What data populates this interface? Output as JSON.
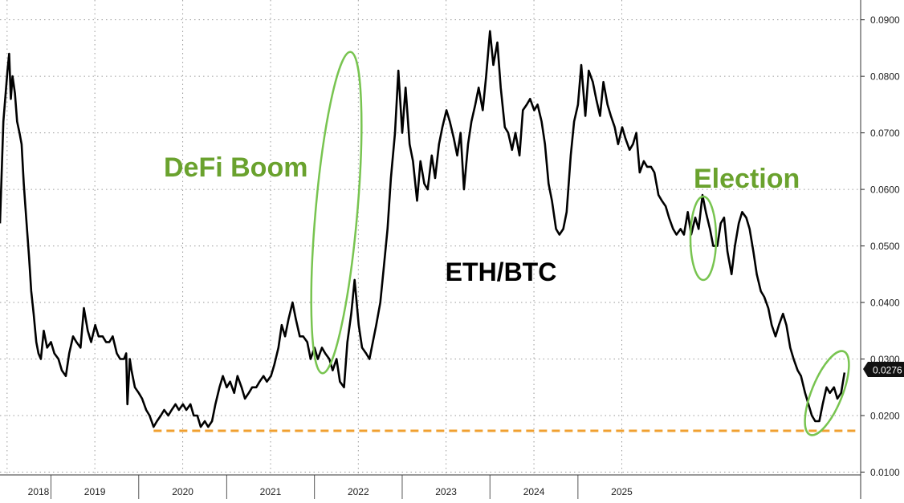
{
  "chart_data": {
    "type": "line",
    "title": "ETH/BTC",
    "series": [
      {
        "color": "#000000",
        "points": [
          [
            "2017-12-01",
            0.054
          ],
          [
            "2017-12-15",
            0.072
          ],
          [
            "2018-01-01",
            0.081
          ],
          [
            "2018-01-08",
            0.084
          ],
          [
            "2018-01-15",
            0.076
          ],
          [
            "2018-01-22",
            0.08
          ],
          [
            "2018-02-01",
            0.077
          ],
          [
            "2018-02-10",
            0.072
          ],
          [
            "2018-02-20",
            0.07
          ],
          [
            "2018-03-01",
            0.068
          ],
          [
            "2018-03-10",
            0.061
          ],
          [
            "2018-03-20",
            0.055
          ],
          [
            "2018-04-01",
            0.048
          ],
          [
            "2018-04-10",
            0.042
          ],
          [
            "2018-04-20",
            0.038
          ],
          [
            "2018-05-01",
            0.033
          ],
          [
            "2018-05-10",
            0.031
          ],
          [
            "2018-05-20",
            0.03
          ],
          [
            "2018-06-01",
            0.035
          ],
          [
            "2018-06-15",
            0.032
          ],
          [
            "2018-07-01",
            0.033
          ],
          [
            "2018-07-15",
            0.031
          ],
          [
            "2018-08-01",
            0.03
          ],
          [
            "2018-08-15",
            0.028
          ],
          [
            "2018-09-01",
            0.027
          ],
          [
            "2018-09-15",
            0.031
          ],
          [
            "2018-10-01",
            0.034
          ],
          [
            "2018-10-15",
            0.033
          ],
          [
            "2018-11-01",
            0.032
          ],
          [
            "2018-11-15",
            0.039
          ],
          [
            "2018-12-01",
            0.035
          ],
          [
            "2018-12-15",
            0.033
          ],
          [
            "2019-01-01",
            0.036
          ],
          [
            "2019-01-15",
            0.034
          ],
          [
            "2019-02-01",
            0.034
          ],
          [
            "2019-02-15",
            0.033
          ],
          [
            "2019-03-01",
            0.033
          ],
          [
            "2019-03-15",
            0.034
          ],
          [
            "2019-04-01",
            0.031
          ],
          [
            "2019-04-15",
            0.03
          ],
          [
            "2019-05-01",
            0.03
          ],
          [
            "2019-05-10",
            0.031
          ],
          [
            "2019-05-15",
            0.022
          ],
          [
            "2019-05-25",
            0.03
          ],
          [
            "2019-06-01",
            0.028
          ],
          [
            "2019-06-15",
            0.025
          ],
          [
            "2019-07-01",
            0.024
          ],
          [
            "2019-07-15",
            0.023
          ],
          [
            "2019-08-01",
            0.021
          ],
          [
            "2019-08-15",
            0.02
          ],
          [
            "2019-09-01",
            0.018
          ],
          [
            "2019-09-15",
            0.019
          ],
          [
            "2019-10-01",
            0.02
          ],
          [
            "2019-10-15",
            0.021
          ],
          [
            "2019-11-01",
            0.02
          ],
          [
            "2019-11-15",
            0.021
          ],
          [
            "2019-12-01",
            0.022
          ],
          [
            "2019-12-15",
            0.021
          ],
          [
            "2020-01-01",
            0.022
          ],
          [
            "2020-01-15",
            0.021
          ],
          [
            "2020-02-01",
            0.022
          ],
          [
            "2020-02-15",
            0.02
          ],
          [
            "2020-03-01",
            0.02
          ],
          [
            "2020-03-15",
            0.018
          ],
          [
            "2020-04-01",
            0.019
          ],
          [
            "2020-04-15",
            0.018
          ],
          [
            "2020-05-01",
            0.019
          ],
          [
            "2020-05-15",
            0.022
          ],
          [
            "2020-06-01",
            0.025
          ],
          [
            "2020-06-15",
            0.027
          ],
          [
            "2020-07-01",
            0.025
          ],
          [
            "2020-07-15",
            0.026
          ],
          [
            "2020-08-01",
            0.024
          ],
          [
            "2020-08-15",
            0.027
          ],
          [
            "2020-09-01",
            0.025
          ],
          [
            "2020-09-15",
            0.023
          ],
          [
            "2020-10-01",
            0.024
          ],
          [
            "2020-10-15",
            0.025
          ],
          [
            "2020-11-01",
            0.025
          ],
          [
            "2020-11-15",
            0.026
          ],
          [
            "2020-12-01",
            0.027
          ],
          [
            "2020-12-15",
            0.026
          ],
          [
            "2021-01-01",
            0.027
          ],
          [
            "2021-01-15",
            0.029
          ],
          [
            "2021-02-01",
            0.032
          ],
          [
            "2021-02-15",
            0.036
          ],
          [
            "2021-03-01",
            0.034
          ],
          [
            "2021-03-15",
            0.037
          ],
          [
            "2021-04-01",
            0.04
          ],
          [
            "2021-04-15",
            0.037
          ],
          [
            "2021-05-01",
            0.034
          ],
          [
            "2021-05-15",
            0.034
          ],
          [
            "2021-06-01",
            0.033
          ],
          [
            "2021-06-15",
            0.03
          ],
          [
            "2021-07-01",
            0.032
          ],
          [
            "2021-07-15",
            0.03
          ],
          [
            "2021-08-01",
            0.032
          ],
          [
            "2021-08-15",
            0.031
          ],
          [
            "2021-09-01",
            0.03
          ],
          [
            "2021-09-15",
            0.028
          ],
          [
            "2021-10-01",
            0.03
          ],
          [
            "2021-10-15",
            0.026
          ],
          [
            "2021-11-01",
            0.025
          ],
          [
            "2021-11-15",
            0.033
          ],
          [
            "2021-12-01",
            0.038
          ],
          [
            "2021-12-15",
            0.044
          ],
          [
            "2022-01-01",
            0.036
          ],
          [
            "2022-01-15",
            0.032
          ],
          [
            "2022-02-01",
            0.031
          ],
          [
            "2022-02-15",
            0.03
          ],
          [
            "2022-03-01",
            0.033
          ],
          [
            "2022-03-15",
            0.036
          ],
          [
            "2022-04-01",
            0.04
          ],
          [
            "2022-04-15",
            0.046
          ],
          [
            "2022-05-01",
            0.053
          ],
          [
            "2022-05-15",
            0.062
          ],
          [
            "2022-06-01",
            0.07
          ],
          [
            "2022-06-15",
            0.081
          ],
          [
            "2022-07-01",
            0.07
          ],
          [
            "2022-07-15",
            0.078
          ],
          [
            "2022-08-01",
            0.068
          ],
          [
            "2022-08-15",
            0.065
          ],
          [
            "2022-09-01",
            0.058
          ],
          [
            "2022-09-15",
            0.065
          ],
          [
            "2022-10-01",
            0.061
          ],
          [
            "2022-10-15",
            0.06
          ],
          [
            "2022-11-01",
            0.066
          ],
          [
            "2022-11-15",
            0.062
          ],
          [
            "2022-12-01",
            0.068
          ],
          [
            "2022-12-15",
            0.071
          ],
          [
            "2023-01-01",
            0.074
          ],
          [
            "2023-01-15",
            0.072
          ],
          [
            "2023-02-01",
            0.069
          ],
          [
            "2023-02-15",
            0.066
          ],
          [
            "2023-03-01",
            0.07
          ],
          [
            "2023-03-15",
            0.06
          ],
          [
            "2023-04-01",
            0.068
          ],
          [
            "2023-04-15",
            0.072
          ],
          [
            "2023-05-01",
            0.075
          ],
          [
            "2023-05-15",
            0.078
          ],
          [
            "2023-06-01",
            0.074
          ],
          [
            "2023-06-15",
            0.08
          ],
          [
            "2023-07-01",
            0.088
          ],
          [
            "2023-07-15",
            0.082
          ],
          [
            "2023-08-01",
            0.086
          ],
          [
            "2023-08-15",
            0.078
          ],
          [
            "2023-09-01",
            0.071
          ],
          [
            "2023-09-15",
            0.07
          ],
          [
            "2023-10-01",
            0.067
          ],
          [
            "2023-10-15",
            0.07
          ],
          [
            "2023-11-01",
            0.066
          ],
          [
            "2023-11-15",
            0.074
          ],
          [
            "2023-12-01",
            0.075
          ],
          [
            "2023-12-15",
            0.076
          ],
          [
            "2024-01-01",
            0.074
          ],
          [
            "2024-01-15",
            0.075
          ],
          [
            "2024-02-01",
            0.072
          ],
          [
            "2024-02-15",
            0.068
          ],
          [
            "2024-03-01",
            0.061
          ],
          [
            "2024-03-15",
            0.058
          ],
          [
            "2024-04-01",
            0.053
          ],
          [
            "2024-04-15",
            0.052
          ],
          [
            "2024-05-01",
            0.053
          ],
          [
            "2024-05-15",
            0.056
          ],
          [
            "2024-06-01",
            0.066
          ],
          [
            "2024-06-15",
            0.072
          ],
          [
            "2024-07-01",
            0.075
          ],
          [
            "2024-07-15",
            0.082
          ],
          [
            "2024-08-01",
            0.073
          ],
          [
            "2024-08-15",
            0.081
          ],
          [
            "2024-09-01",
            0.079
          ],
          [
            "2024-09-15",
            0.076
          ],
          [
            "2024-10-01",
            0.073
          ],
          [
            "2024-10-15",
            0.079
          ],
          [
            "2024-11-01",
            0.075
          ],
          [
            "2024-11-15",
            0.073
          ],
          [
            "2024-12-01",
            0.071
          ],
          [
            "2024-12-15",
            0.068
          ],
          [
            "2025-01-01",
            0.071
          ],
          [
            "2025-01-15",
            0.069
          ],
          [
            "2025-02-01",
            0.067
          ],
          [
            "2025-02-15",
            0.068
          ],
          [
            "2025-03-01",
            0.07
          ],
          [
            "2025-03-15",
            0.063
          ],
          [
            "2025-04-01",
            0.065
          ],
          [
            "2025-04-15",
            0.064
          ],
          [
            "2025-05-01",
            0.064
          ],
          [
            "2025-05-15",
            0.063
          ],
          [
            "2025-06-01",
            0.059
          ],
          [
            "2025-06-15",
            0.058
          ],
          [
            "2025-07-01",
            0.057
          ],
          [
            "2025-07-15",
            0.055
          ],
          [
            "2025-08-01",
            0.053
          ],
          [
            "2025-08-15",
            0.052
          ],
          [
            "2025-09-01",
            0.053
          ],
          [
            "2025-09-15",
            0.052
          ],
          [
            "2025-10-01",
            0.056
          ],
          [
            "2025-10-15",
            0.052
          ],
          [
            "2025-11-01",
            0.055
          ],
          [
            "2025-11-15",
            0.053
          ],
          [
            "2025-12-01",
            0.059
          ],
          [
            "2025-12-15",
            0.056
          ],
          [
            "2026-01-01",
            0.053
          ],
          [
            "2026-01-15",
            0.05
          ],
          [
            "2026-02-01",
            0.05
          ],
          [
            "2026-02-15",
            0.054
          ],
          [
            "2026-03-01",
            0.055
          ],
          [
            "2026-03-15",
            0.049
          ],
          [
            "2026-04-01",
            0.045
          ],
          [
            "2026-04-15",
            0.05
          ],
          [
            "2026-05-01",
            0.054
          ],
          [
            "2026-05-15",
            0.056
          ],
          [
            "2026-06-01",
            0.055
          ],
          [
            "2026-06-15",
            0.053
          ],
          [
            "2026-07-01",
            0.049
          ],
          [
            "2026-07-15",
            0.045
          ],
          [
            "2026-08-01",
            0.042
          ],
          [
            "2026-08-15",
            0.041
          ],
          [
            "2026-09-01",
            0.039
          ],
          [
            "2026-09-15",
            0.036
          ],
          [
            "2026-10-01",
            0.034
          ],
          [
            "2026-10-15",
            0.036
          ],
          [
            "2026-11-01",
            0.038
          ],
          [
            "2026-11-15",
            0.036
          ],
          [
            "2026-12-01",
            0.032
          ],
          [
            "2026-12-15",
            0.03
          ],
          [
            "2027-01-01",
            0.028
          ],
          [
            "2027-01-15",
            0.027
          ],
          [
            "2027-02-01",
            0.024
          ],
          [
            "2027-02-15",
            0.022
          ],
          [
            "2027-03-01",
            0.02
          ],
          [
            "2027-03-15",
            0.019
          ],
          [
            "2027-04-01",
            0.019
          ],
          [
            "2027-04-15",
            0.022
          ],
          [
            "2027-05-01",
            0.025
          ],
          [
            "2027-05-15",
            0.024
          ],
          [
            "2027-06-01",
            0.025
          ],
          [
            "2027-06-15",
            0.023
          ],
          [
            "2027-07-01",
            0.024
          ],
          [
            "2027-07-15",
            0.0276
          ]
        ]
      }
    ],
    "y_axis": {
      "range": [
        0.0095,
        0.0935
      ],
      "ticks": [
        "0.0900",
        "0.0800",
        "0.0700",
        "0.0600",
        "0.0500",
        "0.0400",
        "0.0300",
        "0.0200",
        "0.0100"
      ],
      "tick_values": [
        0.09,
        0.08,
        0.07,
        0.06,
        0.05,
        0.04,
        0.03,
        0.02,
        0.01
      ],
      "position": "right"
    },
    "x_axis": {
      "labels": [
        "2018",
        "2019",
        "2020",
        "2021",
        "2022",
        "2023",
        "2024",
        "2025"
      ],
      "boundaries": [
        "2018-07-01",
        "2019-07-01",
        "2020-07-01",
        "2021-07-01",
        "2022-07-01",
        "2023-07-01",
        "2024-07-01",
        "2025-07-01"
      ],
      "range": [
        "2017-12-01",
        "2027-09-20"
      ]
    },
    "last_value_label": "0.0276",
    "reference_line": {
      "value": 0.0173,
      "color": "#f0a030",
      "style": "dashed",
      "from": "2019-09-01",
      "to": "2027-09-01"
    },
    "annotations": [
      {
        "text": "DeFi Boom",
        "color": "#6aa22e"
      },
      {
        "text": "Election",
        "color": "#6aa22e"
      }
    ],
    "highlight_color": "#78c450",
    "grid": true
  }
}
